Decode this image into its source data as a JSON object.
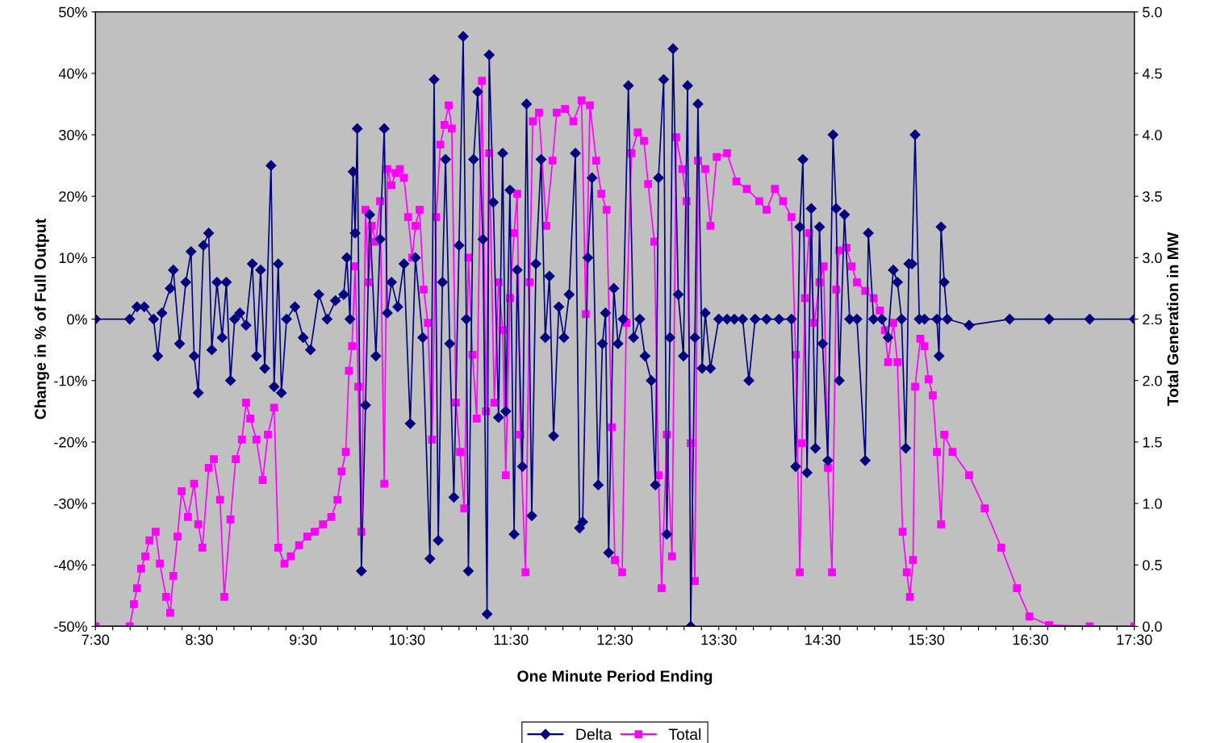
{
  "chart_data": {
    "type": "line",
    "xlabel": "One Minute Period Ending",
    "ylabel": "Change in % of Full Output",
    "y2label": "Total Generation in MW",
    "xlim": [
      7.5,
      17.5
    ],
    "xticks": [
      {
        "value": 7.5,
        "label": "7:30"
      },
      {
        "value": 7.6667,
        "label": null
      },
      {
        "value": 7.8333,
        "label": null
      },
      {
        "value": 8.0,
        "label": null
      },
      {
        "value": 8.1667,
        "label": null
      },
      {
        "value": 8.3333,
        "label": null
      },
      {
        "value": 8.5,
        "label": "8:30"
      },
      {
        "value": 8.6667,
        "label": null
      },
      {
        "value": 8.8333,
        "label": null
      },
      {
        "value": 9.0,
        "label": null
      },
      {
        "value": 9.1667,
        "label": null
      },
      {
        "value": 9.3333,
        "label": null
      },
      {
        "value": 9.5,
        "label": "9:30"
      },
      {
        "value": 9.6667,
        "label": null
      },
      {
        "value": 9.8333,
        "label": null
      },
      {
        "value": 10.0,
        "label": null
      },
      {
        "value": 10.1667,
        "label": null
      },
      {
        "value": 10.3333,
        "label": null
      },
      {
        "value": 10.5,
        "label": "10:30"
      },
      {
        "value": 10.6667,
        "label": null
      },
      {
        "value": 10.8333,
        "label": null
      },
      {
        "value": 11.0,
        "label": null
      },
      {
        "value": 11.1667,
        "label": null
      },
      {
        "value": 11.3333,
        "label": null
      },
      {
        "value": 11.5,
        "label": "11:30"
      },
      {
        "value": 11.6667,
        "label": null
      },
      {
        "value": 11.8333,
        "label": null
      },
      {
        "value": 12.0,
        "label": null
      },
      {
        "value": 12.1667,
        "label": null
      },
      {
        "value": 12.3333,
        "label": null
      },
      {
        "value": 12.5,
        "label": "12:30"
      },
      {
        "value": 12.6667,
        "label": null
      },
      {
        "value": 12.8333,
        "label": null
      },
      {
        "value": 13.0,
        "label": null
      },
      {
        "value": 13.1667,
        "label": null
      },
      {
        "value": 13.3333,
        "label": null
      },
      {
        "value": 13.5,
        "label": "13:30"
      },
      {
        "value": 13.6667,
        "label": null
      },
      {
        "value": 13.8333,
        "label": null
      },
      {
        "value": 14.0,
        "label": null
      },
      {
        "value": 14.1667,
        "label": null
      },
      {
        "value": 14.3333,
        "label": null
      },
      {
        "value": 14.5,
        "label": "14:30"
      },
      {
        "value": 14.6667,
        "label": null
      },
      {
        "value": 14.8333,
        "label": null
      },
      {
        "value": 15.0,
        "label": null
      },
      {
        "value": 15.1667,
        "label": null
      },
      {
        "value": 15.3333,
        "label": null
      },
      {
        "value": 15.5,
        "label": "15:30"
      },
      {
        "value": 15.6667,
        "label": null
      },
      {
        "value": 15.8333,
        "label": null
      },
      {
        "value": 16.0,
        "label": null
      },
      {
        "value": 16.1667,
        "label": null
      },
      {
        "value": 16.3333,
        "label": null
      },
      {
        "value": 16.5,
        "label": "16:30"
      },
      {
        "value": 16.6667,
        "label": null
      },
      {
        "value": 16.8333,
        "label": null
      },
      {
        "value": 17.0,
        "label": null
      },
      {
        "value": 17.1667,
        "label": null
      },
      {
        "value": 17.3333,
        "label": null
      },
      {
        "value": 17.5,
        "label": "17:30"
      }
    ],
    "ylim": [
      -50,
      50
    ],
    "yticks": [
      {
        "value": -50,
        "label": "-50%"
      },
      {
        "value": -40,
        "label": "-40%"
      },
      {
        "value": -30,
        "label": "-30%"
      },
      {
        "value": -20,
        "label": "-20%"
      },
      {
        "value": -10,
        "label": "-10%"
      },
      {
        "value": 0,
        "label": "0%"
      },
      {
        "value": 10,
        "label": "10%"
      },
      {
        "value": 20,
        "label": "20%"
      },
      {
        "value": 30,
        "label": "30%"
      },
      {
        "value": 40,
        "label": "40%"
      },
      {
        "value": 50,
        "label": "50%"
      }
    ],
    "y2lim": [
      0,
      5
    ],
    "y2ticks": [
      {
        "value": 0,
        "label": "0.0"
      },
      {
        "value": 0.5,
        "label": "0.5"
      },
      {
        "value": 1,
        "label": "1.0"
      },
      {
        "value": 1.5,
        "label": "1.5"
      },
      {
        "value": 2,
        "label": "2.0"
      },
      {
        "value": 2.5,
        "label": "2.5"
      },
      {
        "value": 3,
        "label": "3.0"
      },
      {
        "value": 3.5,
        "label": "3.5"
      },
      {
        "value": 4,
        "label": "4.0"
      },
      {
        "value": 4.5,
        "label": "4.5"
      },
      {
        "value": 5,
        "label": "5.0"
      }
    ],
    "grid": false,
    "legend": "bottom",
    "line_style": "solid",
    "series": [
      {
        "name": "Delta",
        "color": "#000080",
        "marker": "diamond",
        "x": [
          7.5,
          7.83,
          7.9,
          7.97,
          8.06,
          8.1,
          8.14,
          8.22,
          8.25,
          8.31,
          8.37,
          8.42,
          8.45,
          8.49,
          8.54,
          8.59,
          8.62,
          8.67,
          8.72,
          8.76,
          8.8,
          8.84,
          8.89,
          8.95,
          9.01,
          9.05,
          9.09,
          9.13,
          9.19,
          9.22,
          9.26,
          9.29,
          9.34,
          9.42,
          9.5,
          9.57,
          9.65,
          9.73,
          9.81,
          9.89,
          9.92,
          9.95,
          9.98,
          10.0,
          10.02,
          10.06,
          10.1,
          10.14,
          10.2,
          10.24,
          10.28,
          10.31,
          10.35,
          10.41,
          10.47,
          10.53,
          10.58,
          10.65,
          10.72,
          10.76,
          10.8,
          10.84,
          10.87,
          10.91,
          10.95,
          11.0,
          11.04,
          11.07,
          11.09,
          11.14,
          11.18,
          11.23,
          11.27,
          11.29,
          11.33,
          11.38,
          11.42,
          11.45,
          11.49,
          11.53,
          11.56,
          11.61,
          11.65,
          11.7,
          11.74,
          11.79,
          11.83,
          11.87,
          11.91,
          11.96,
          12.01,
          12.06,
          12.12,
          12.16,
          12.19,
          12.24,
          12.28,
          12.34,
          12.38,
          12.41,
          12.44,
          12.49,
          12.53,
          12.58,
          12.63,
          12.68,
          12.74,
          12.79,
          12.85,
          12.89,
          12.92,
          12.97,
          13.0,
          13.03,
          13.06,
          13.11,
          13.16,
          13.2,
          13.23,
          13.27,
          13.3,
          13.34,
          13.37,
          13.42,
          13.5,
          13.58,
          13.65,
          13.73,
          13.79,
          13.85,
          13.96,
          14.08,
          14.2,
          14.24,
          14.28,
          14.31,
          14.35,
          14.39,
          14.43,
          14.47,
          14.5,
          14.55,
          14.6,
          14.63,
          14.66,
          14.71,
          14.76,
          14.83,
          14.91,
          14.94,
          14.99,
          15.07,
          15.13,
          15.18,
          15.22,
          15.26,
          15.3,
          15.33,
          15.36,
          15.39,
          15.43,
          15.48,
          15.6,
          15.62,
          15.64,
          15.67,
          15.7,
          15.91,
          16.3,
          16.68,
          17.07,
          17.5
        ],
        "values": [
          0,
          0,
          2,
          2,
          0,
          -6,
          1,
          5,
          8,
          -4,
          6,
          11,
          -6,
          -12,
          12,
          14,
          -5,
          6,
          -3,
          6,
          -10,
          0,
          1,
          -1,
          9,
          -6,
          8,
          -8,
          25,
          -11,
          9,
          -12,
          0,
          2,
          -3,
          -5,
          4,
          0,
          3,
          4,
          10,
          0,
          24,
          14,
          31,
          -41,
          -14,
          17,
          -6,
          13,
          31,
          1,
          6,
          2,
          9,
          -17,
          10,
          -3,
          -39,
          39,
          -36,
          6,
          26,
          -4,
          -29,
          12,
          46,
          0,
          -41,
          26,
          37,
          13,
          -48,
          43,
          19,
          -16,
          27,
          -15,
          21,
          -35,
          8,
          -24,
          35,
          -32,
          9,
          26,
          -3,
          7,
          -19,
          2,
          -3,
          4,
          27,
          -34,
          -33,
          10,
          23,
          -27,
          -4,
          1,
          -38,
          5,
          -4,
          0,
          38,
          -3,
          0,
          -6,
          -10,
          -27,
          23,
          39,
          -35,
          -3,
          44,
          4,
          -6,
          38,
          -50,
          -3,
          35,
          -8,
          1,
          -8,
          0,
          0,
          0,
          0,
          -10,
          0,
          0,
          0,
          0,
          -24,
          15,
          26,
          -25,
          18,
          -21,
          15,
          -4,
          -23,
          30,
          18,
          -10,
          17,
          0,
          0,
          -23,
          14,
          0,
          0,
          -3,
          8,
          6,
          0,
          -21,
          9,
          9,
          30,
          0,
          0,
          0,
          -6,
          15,
          6,
          0,
          -1,
          0,
          0,
          0,
          0
        ]
      },
      {
        "name": "Total",
        "color": "#ff00ff",
        "marker": "square",
        "axis": "y2",
        "x": [
          7.5,
          7.83,
          7.87,
          7.9,
          7.94,
          7.98,
          8.02,
          8.08,
          8.12,
          8.18,
          8.22,
          8.25,
          8.29,
          8.33,
          8.39,
          8.45,
          8.49,
          8.53,
          8.59,
          8.64,
          8.7,
          8.74,
          8.8,
          8.85,
          8.91,
          8.95,
          8.99,
          9.05,
          9.11,
          9.16,
          9.22,
          9.26,
          9.32,
          9.38,
          9.46,
          9.54,
          9.61,
          9.69,
          9.77,
          9.83,
          9.87,
          9.91,
          9.94,
          9.97,
          10.0,
          10.03,
          10.06,
          10.1,
          10.13,
          10.16,
          10.2,
          10.24,
          10.28,
          10.31,
          10.35,
          10.39,
          10.43,
          10.47,
          10.51,
          10.55,
          10.58,
          10.62,
          10.66,
          10.7,
          10.74,
          10.78,
          10.82,
          10.86,
          10.9,
          10.93,
          10.97,
          11.01,
          11.05,
          11.09,
          11.13,
          11.17,
          11.22,
          11.26,
          11.29,
          11.34,
          11.38,
          11.42,
          11.45,
          11.49,
          11.53,
          11.56,
          11.59,
          11.64,
          11.68,
          11.71,
          11.77,
          11.84,
          11.9,
          11.94,
          12.02,
          12.1,
          12.18,
          12.22,
          12.26,
          12.32,
          12.37,
          12.42,
          12.47,
          12.5,
          12.57,
          12.61,
          12.66,
          12.72,
          12.78,
          12.82,
          12.88,
          12.92,
          12.95,
          13.0,
          13.05,
          13.09,
          13.15,
          13.19,
          13.23,
          13.27,
          13.3,
          13.37,
          13.42,
          13.48,
          13.58,
          13.67,
          13.77,
          13.89,
          13.96,
          14.04,
          14.12,
          14.2,
          14.24,
          14.28,
          14.3,
          14.33,
          14.37,
          14.42,
          14.47,
          14.51,
          14.55,
          14.59,
          14.63,
          14.66,
          14.73,
          14.78,
          14.83,
          14.91,
          14.99,
          15.05,
          15.1,
          15.13,
          15.18,
          15.22,
          15.27,
          15.31,
          15.34,
          15.37,
          15.39,
          15.44,
          15.48,
          15.52,
          15.56,
          15.6,
          15.64,
          15.67,
          15.75,
          15.91,
          16.06,
          16.22,
          16.37,
          16.49,
          16.68,
          17.07,
          17.5
        ],
        "values": [
          0,
          0,
          0.18,
          0.31,
          0.47,
          0.57,
          0.7,
          0.77,
          0.51,
          0.24,
          0.11,
          0.41,
          0.73,
          1.1,
          0.89,
          1.16,
          0.83,
          0.64,
          1.29,
          1.36,
          1.03,
          0.24,
          0.87,
          1.36,
          1.52,
          1.82,
          1.69,
          1.52,
          1.19,
          1.56,
          1.78,
          0.64,
          0.51,
          0.57,
          0.66,
          0.73,
          0.77,
          0.83,
          0.89,
          1.03,
          1.26,
          1.42,
          2.08,
          2.28,
          2.93,
          1.95,
          0.77,
          3.39,
          2.8,
          3.26,
          3.13,
          3.46,
          1.16,
          3.72,
          3.59,
          3.69,
          3.72,
          3.65,
          3.33,
          3.0,
          3.26,
          3.39,
          2.74,
          2.47,
          1.52,
          3.33,
          3.92,
          4.08,
          4.24,
          4.05,
          1.82,
          1.42,
          0.96,
          3.0,
          2.21,
          1.69,
          4.44,
          1.75,
          3.85,
          1.82,
          2.8,
          2.41,
          1.23,
          2.67,
          3.2,
          3.52,
          1.56,
          0.44,
          2.8,
          4.11,
          4.18,
          3.26,
          3.79,
          4.18,
          4.21,
          4.11,
          4.28,
          2.54,
          4.24,
          3.79,
          3.52,
          3.39,
          1.62,
          0.54,
          0.44,
          2.47,
          3.85,
          4.02,
          3.95,
          3.6,
          3.13,
          1.23,
          0.31,
          1.56,
          0.57,
          3.98,
          3.72,
          3.46,
          1.49,
          0.37,
          3.79,
          3.72,
          3.26,
          3.82,
          3.85,
          3.62,
          3.56,
          3.46,
          3.39,
          3.56,
          3.46,
          3.33,
          2.21,
          0.44,
          1.49,
          2.67,
          3.2,
          2.47,
          2.8,
          2.93,
          1.29,
          0.44,
          2.74,
          3.06,
          3.08,
          2.93,
          2.8,
          2.73,
          2.67,
          2.57,
          2.41,
          2.15,
          2.47,
          2.15,
          0.77,
          0.44,
          0.24,
          0.54,
          1.95,
          2.34,
          2.28,
          2.01,
          1.88,
          1.42,
          0.83,
          1.56,
          1.42,
          1.23,
          0.96,
          0.64,
          0.31,
          0.08,
          0.01,
          0,
          0
        ]
      }
    ]
  }
}
